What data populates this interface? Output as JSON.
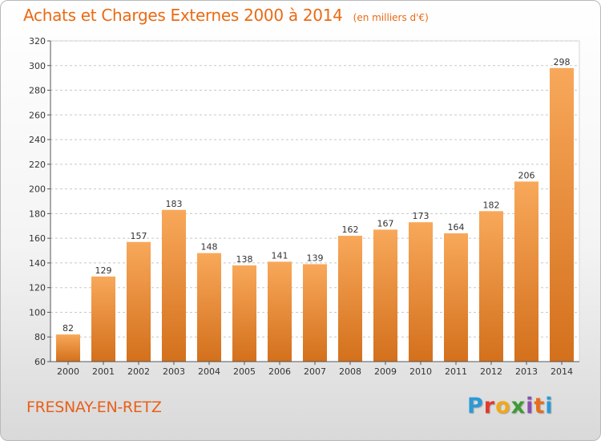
{
  "title": "Achats et Charges Externes 2000 à 2014",
  "subtitle": "(en milliers d'€)",
  "place": "FRESNAY-EN-RETZ",
  "logo_text": "Proxiti",
  "colors": {
    "bar_light": "#f8a85a",
    "bar_dark": "#d3701c",
    "title": "#ea6a14",
    "grid": "#c8c8c8"
  },
  "chart_data": {
    "type": "bar",
    "categories": [
      "2000",
      "2001",
      "2002",
      "2003",
      "2004",
      "2005",
      "2006",
      "2007",
      "2008",
      "2009",
      "2010",
      "2011",
      "2012",
      "2013",
      "2014"
    ],
    "values": [
      82,
      129,
      157,
      183,
      148,
      138,
      141,
      139,
      162,
      167,
      173,
      164,
      182,
      206,
      298
    ],
    "ylim": [
      60,
      320
    ],
    "yticks": [
      60,
      80,
      100,
      120,
      140,
      160,
      180,
      200,
      220,
      240,
      260,
      280,
      300,
      320
    ],
    "grid": true,
    "data_labels": true
  }
}
